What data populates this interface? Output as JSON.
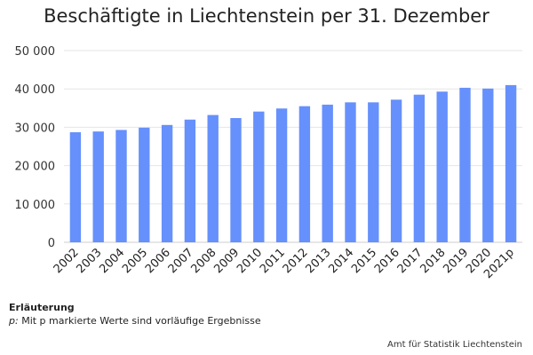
{
  "chart_data": {
    "type": "bar",
    "title": "Beschäftigte in Liechtenstein per 31. Dezember",
    "xlabel": "",
    "ylabel": "",
    "categories": [
      "2002",
      "2003",
      "2004",
      "2005",
      "2006",
      "2007",
      "2008",
      "2009",
      "2010",
      "2011",
      "2012",
      "2013",
      "2014",
      "2015",
      "2016",
      "2017",
      "2018",
      "2019",
      "2020",
      "2021p"
    ],
    "values": [
      28700,
      28900,
      29300,
      29900,
      30600,
      32000,
      33200,
      32400,
      34100,
      34900,
      35500,
      35900,
      36500,
      36500,
      37200,
      38500,
      39300,
      40300,
      40100,
      41000
    ],
    "ylim": [
      0,
      50000
    ],
    "yticks": [
      0,
      10000,
      20000,
      30000,
      40000,
      50000
    ],
    "ytick_labels": [
      "0",
      "10 000",
      "20 000",
      "30 000",
      "40 000",
      "50 000"
    ],
    "grid": true,
    "legend": "none",
    "bar_color": "#6690fb",
    "grid_color": "#e6e6e6"
  },
  "notes": {
    "heading": "Erläuterung",
    "prefix": "p:",
    "text": " Mit p markierte Werte sind vorläufige Ergebnisse"
  },
  "source": "Amt für Statistik Liechtenstein"
}
